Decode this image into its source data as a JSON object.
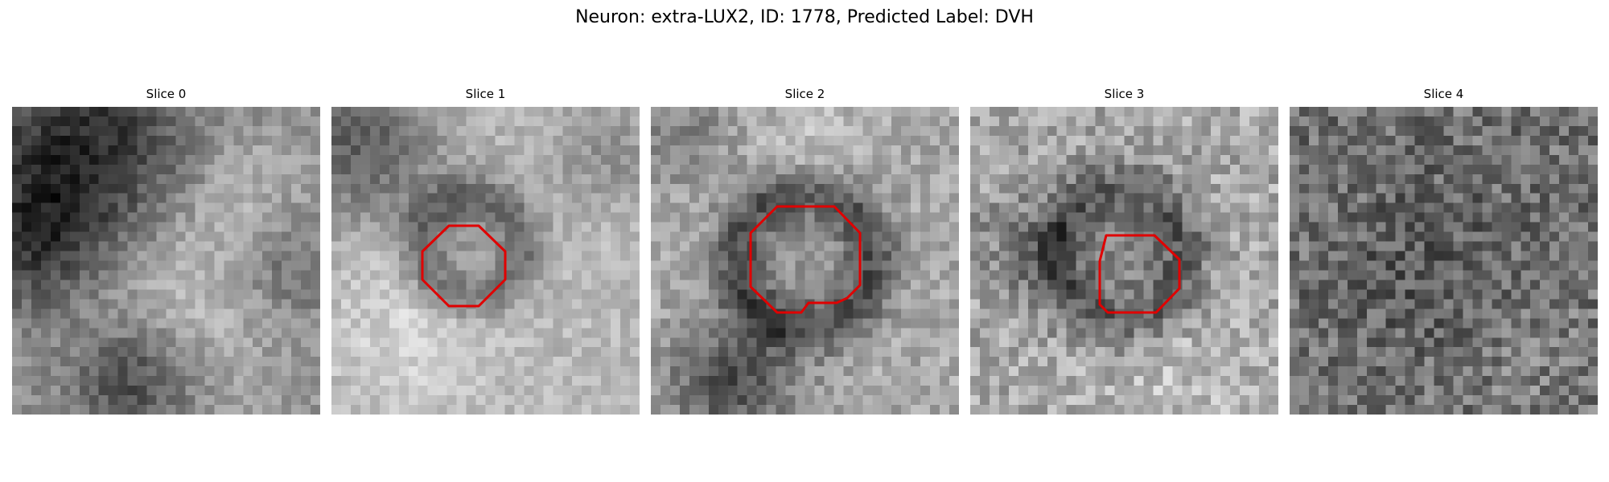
{
  "figure": {
    "title": "Neuron: extra-LUX2, ID: 1778, Predicted Label: DVH"
  },
  "outline_color": "#e00000",
  "panels": [
    {
      "title": "Slice 0",
      "has_outline": false
    },
    {
      "title": "Slice 1",
      "has_outline": true
    },
    {
      "title": "Slice 2",
      "has_outline": true
    },
    {
      "title": "Slice 3",
      "has_outline": true
    },
    {
      "title": "Slice 4",
      "has_outline": false
    }
  ]
}
